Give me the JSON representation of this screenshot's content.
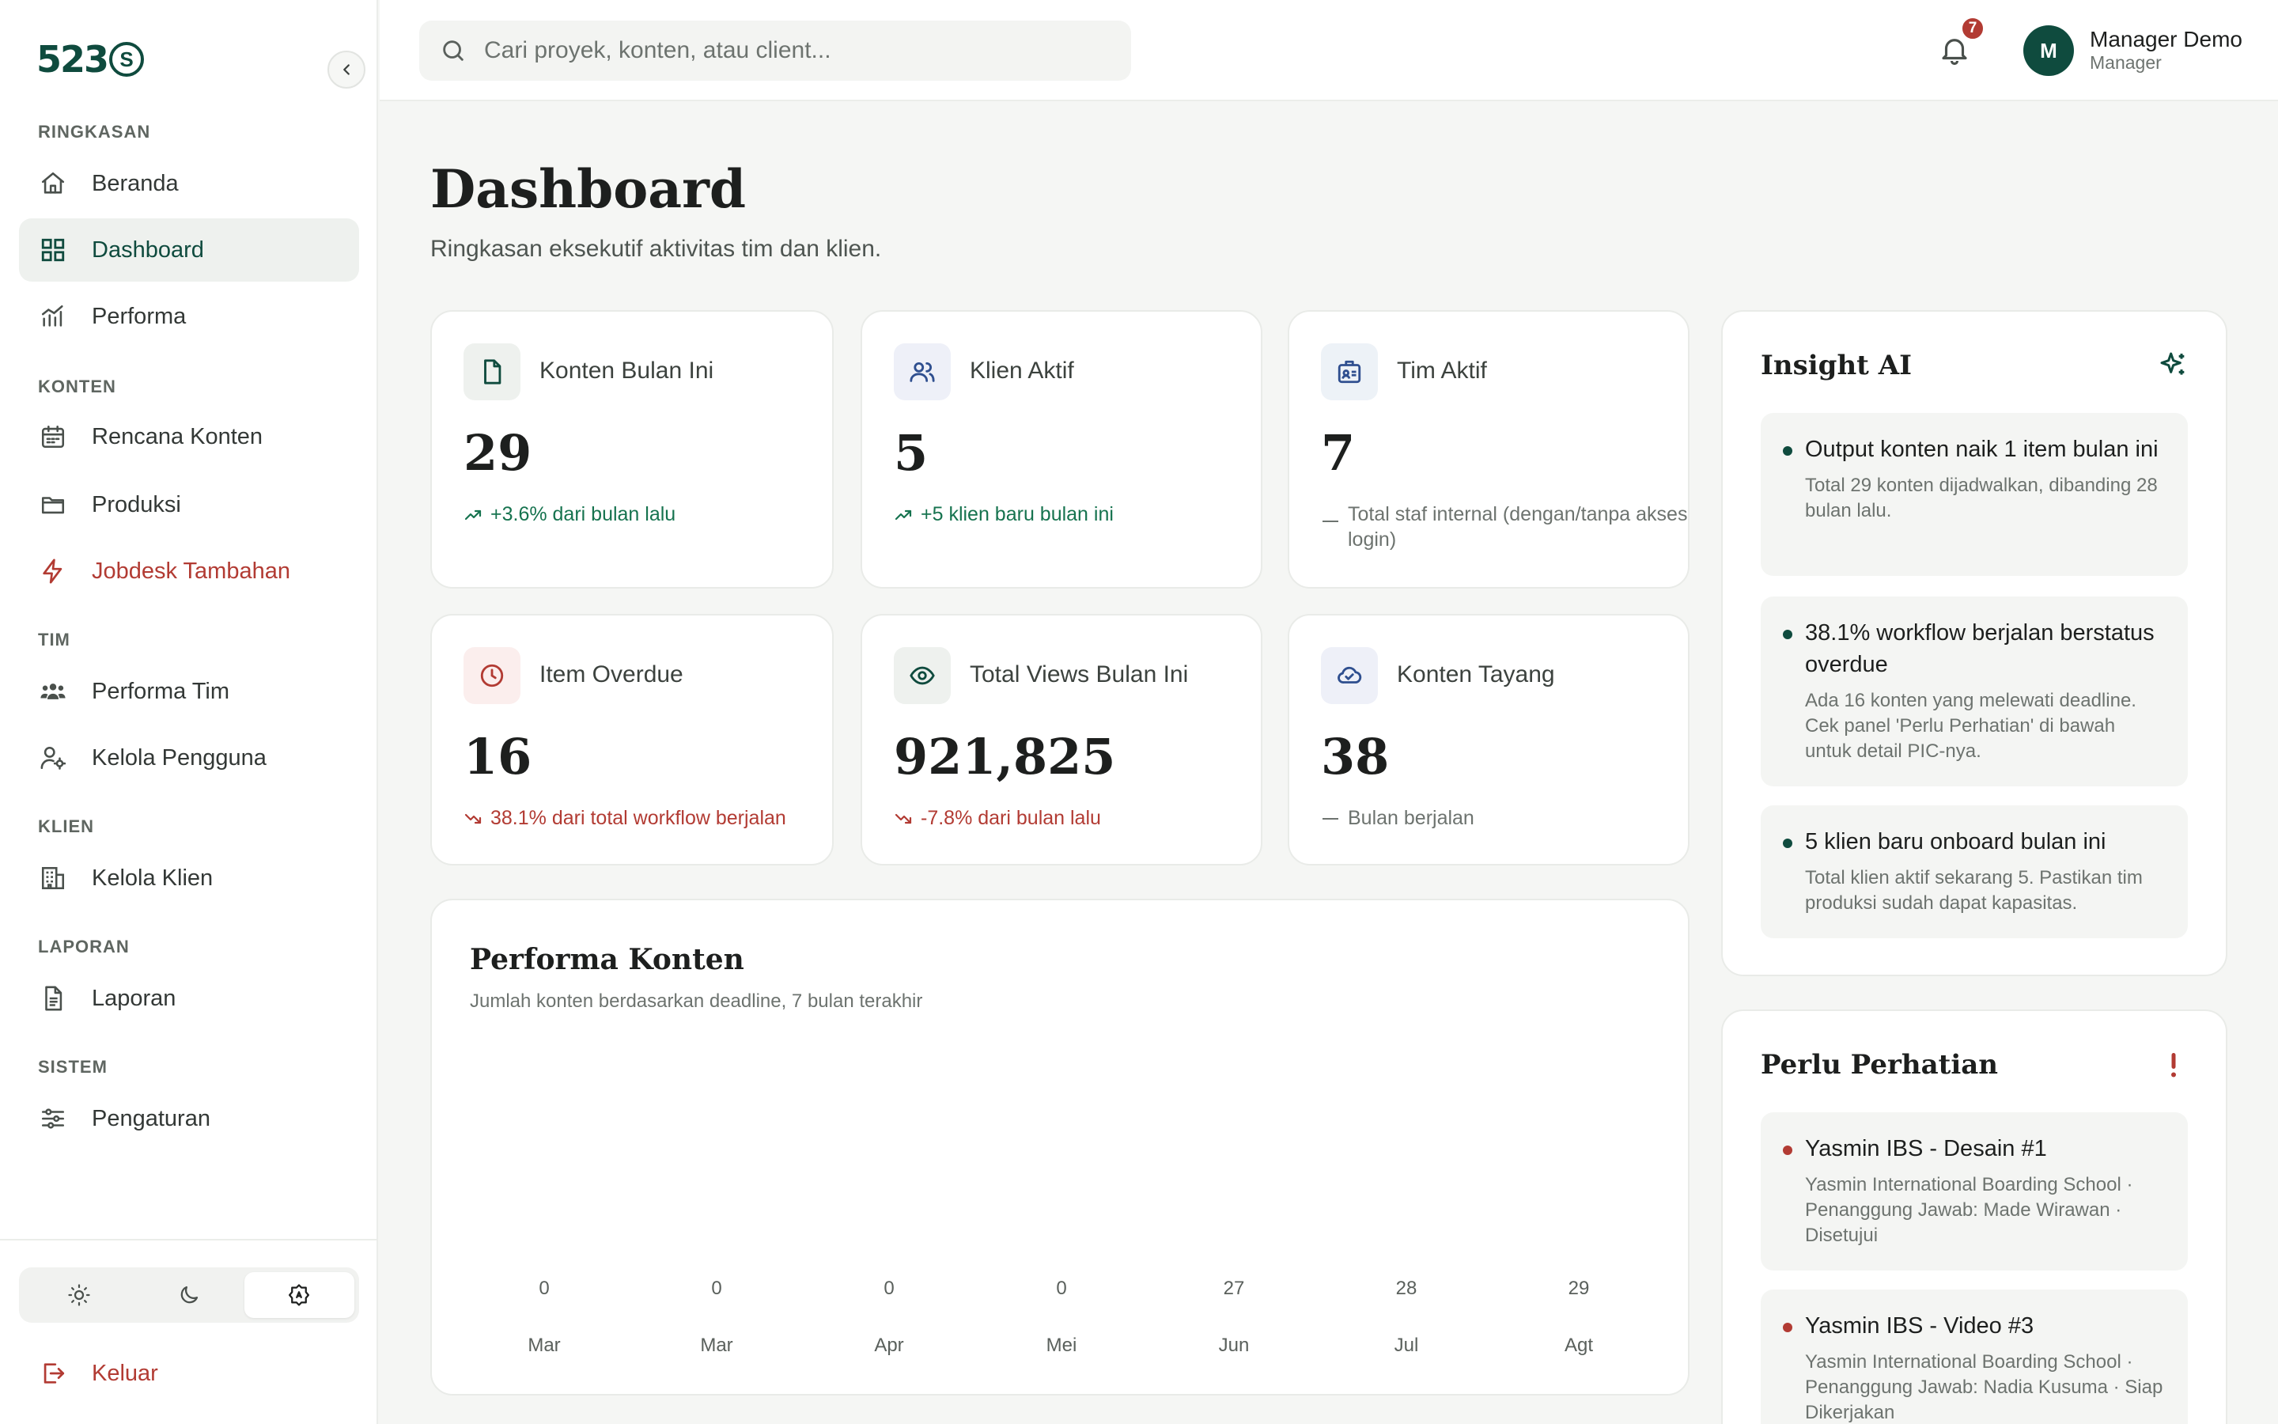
{
  "brand": {
    "logo_text": "523",
    "logo_mark": "S"
  },
  "sidebar": {
    "sections": [
      {
        "title": "RINGKASAN",
        "items": [
          {
            "label": "Beranda",
            "icon": "home-icon"
          },
          {
            "label": "Dashboard",
            "icon": "grid-icon",
            "active": true
          },
          {
            "label": "Performa",
            "icon": "chart-icon"
          }
        ]
      },
      {
        "title": "KONTEN",
        "items": [
          {
            "label": "Rencana Konten",
            "icon": "calendar-icon"
          },
          {
            "label": "Produksi",
            "icon": "folder-icon"
          },
          {
            "label": "Jobdesk Tambahan",
            "icon": "bolt-icon"
          }
        ]
      },
      {
        "title": "TIM",
        "items": [
          {
            "label": "Performa Tim",
            "icon": "team-icon"
          },
          {
            "label": "Kelola Pengguna",
            "icon": "user-cog-icon"
          }
        ]
      },
      {
        "title": "KLIEN",
        "items": [
          {
            "label": "Kelola Klien",
            "icon": "building-icon"
          }
        ]
      },
      {
        "title": "LAPORAN",
        "items": [
          {
            "label": "Laporan",
            "icon": "document-icon"
          }
        ]
      },
      {
        "title": "SISTEM",
        "items": [
          {
            "label": "Pengaturan",
            "icon": "sliders-icon"
          }
        ]
      }
    ],
    "theme_options": [
      "light",
      "dark",
      "auto"
    ],
    "theme_selected": "auto",
    "logout_label": "Keluar"
  },
  "header": {
    "search_placeholder": "Cari proyek, konten, atau client...",
    "notification_count": "7",
    "user": {
      "initial": "M",
      "name": "Manager Demo",
      "role": "Manager"
    }
  },
  "page": {
    "title": "Dashboard",
    "subtitle": "Ringkasan eksekutif aktivitas tim dan klien."
  },
  "stats": [
    {
      "label": "Konten Bulan Ini",
      "value": "29",
      "note": "+3.6% dari bulan lalu",
      "trend": "up",
      "icon": "file-icon"
    },
    {
      "label": "Klien Aktif",
      "value": "5",
      "note": "+5 klien baru bulan ini",
      "trend": "up",
      "icon": "users-icon"
    },
    {
      "label": "Tim Aktif",
      "value": "7",
      "note": "Total staf internal (dengan/tanpa akses login)",
      "trend": "neutral",
      "icon": "badge-icon"
    },
    {
      "label": "Item Overdue",
      "value": "16",
      "note": "38.1% dari total workflow berjalan",
      "trend": "down",
      "icon": "clock-icon"
    },
    {
      "label": "Total Views Bulan Ini",
      "value": "921,825",
      "note": "-7.8% dari bulan lalu",
      "trend": "down",
      "icon": "eye-icon"
    },
    {
      "label": "Konten Tayang",
      "value": "38",
      "note": "Bulan berjalan",
      "trend": "neutral",
      "icon": "cloud-check-icon"
    }
  ],
  "insight": {
    "title": "Insight AI",
    "items": [
      {
        "title": "Output konten naik 1 item bulan ini",
        "desc": "Total 29 konten dijadwalkan, dibanding 28 bulan lalu."
      },
      {
        "title": "38.1% workflow berjalan berstatus overdue",
        "desc": "Ada 16 konten yang melewati deadline. Cek panel 'Perlu Perhatian' di bawah untuk detail PIC-nya."
      },
      {
        "title": "5 klien baru onboard bulan ini",
        "desc": "Total klien aktif sekarang 5. Pastikan tim produksi sudah dapat kapasitas."
      }
    ]
  },
  "attention": {
    "title": "Perlu Perhatian",
    "items": [
      {
        "title": "Yasmin IBS - Desain #1",
        "desc": "Yasmin International Boarding School · Penanggung Jawab: Made Wirawan · Disetujui"
      },
      {
        "title": "Yasmin IBS - Video #3",
        "desc": "Yasmin International Boarding School · Penanggung Jawab: Nadia Kusuma · Siap Dikerjakan"
      }
    ]
  },
  "colors": {
    "brand": "#0f4b3e",
    "danger": "#b23b33",
    "up": "#16734f"
  },
  "chart_data": {
    "type": "bar",
    "title": "Performa Konten",
    "subtitle": "Jumlah konten berdasarkan deadline, 7 bulan terakhir",
    "categories": [
      "Mar",
      "Mar",
      "Apr",
      "Mei",
      "Jun",
      "Jul",
      "Agt"
    ],
    "values": [
      0,
      0,
      0,
      0,
      27,
      28,
      29
    ],
    "xlabel": "",
    "ylabel": "",
    "grid": false,
    "legend": "none"
  }
}
